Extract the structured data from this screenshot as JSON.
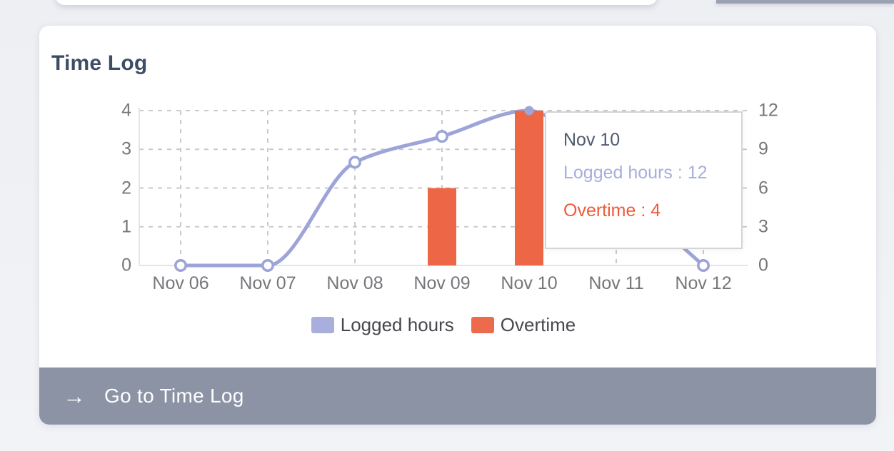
{
  "card": {
    "title": "Time Log"
  },
  "chart_data": {
    "type": "combo",
    "categories": [
      "Nov 06",
      "Nov 07",
      "Nov 08",
      "Nov 09",
      "Nov 10",
      "Nov 11",
      "Nov 12"
    ],
    "series": [
      {
        "name": "Logged hours",
        "type": "line",
        "axis": "right",
        "color": "#9ca4d8",
        "values": [
          0,
          0,
          8,
          10,
          12,
          6,
          0
        ]
      },
      {
        "name": "Overtime",
        "type": "bar",
        "axis": "left",
        "color": "#ed6747",
        "values": [
          0,
          0,
          0,
          2,
          4,
          0,
          0
        ]
      }
    ],
    "left_axis": {
      "min": 0,
      "max": 4,
      "ticks": [
        "4",
        "3",
        "2",
        "1",
        "0"
      ]
    },
    "right_axis": {
      "min": 0,
      "max": 12,
      "ticks": [
        "12",
        "9",
        "6",
        "3",
        "0"
      ]
    },
    "grid": "dashed",
    "legend_position": "bottom",
    "highlighted_category": "Nov 10"
  },
  "legend": {
    "items": [
      {
        "label": "Logged hours",
        "color": "#a9afdd"
      },
      {
        "label": "Overtime",
        "color": "#ed6a4c"
      }
    ]
  },
  "tooltip": {
    "title": "Nov 10",
    "rows": [
      {
        "text": "Logged hours : 12",
        "color": "#a6aedd"
      },
      {
        "text": "Overtime : 4",
        "color": "#f2593a"
      }
    ]
  },
  "footer": {
    "arrow_glyph": "→",
    "label": "Go to Time Log"
  },
  "colors": {
    "page_bg": "#eef0f4",
    "card_bg": "#ffffff",
    "footer_bg": "#8b93a5",
    "title_text": "#3e4d66",
    "axis_text": "#75777b"
  }
}
